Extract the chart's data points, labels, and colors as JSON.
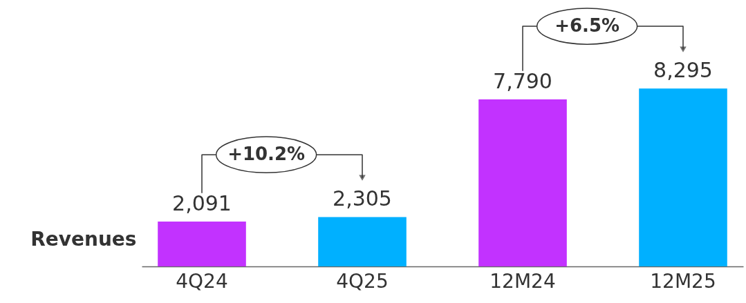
{
  "chart_data": {
    "type": "bar",
    "ylabel": "Revenues",
    "categories": [
      "4Q24",
      "4Q25",
      "12M24",
      "12M25"
    ],
    "values": [
      2091,
      2305,
      7790,
      8295
    ],
    "value_labels": [
      "2,091",
      "2,305",
      "7,790",
      "8,295"
    ],
    "colors": [
      "#c232ff",
      "#00b0ff",
      "#c232ff",
      "#00b0ff"
    ],
    "grid": false,
    "annotations": [
      "+10.2%",
      "+6.5%"
    ]
  }
}
